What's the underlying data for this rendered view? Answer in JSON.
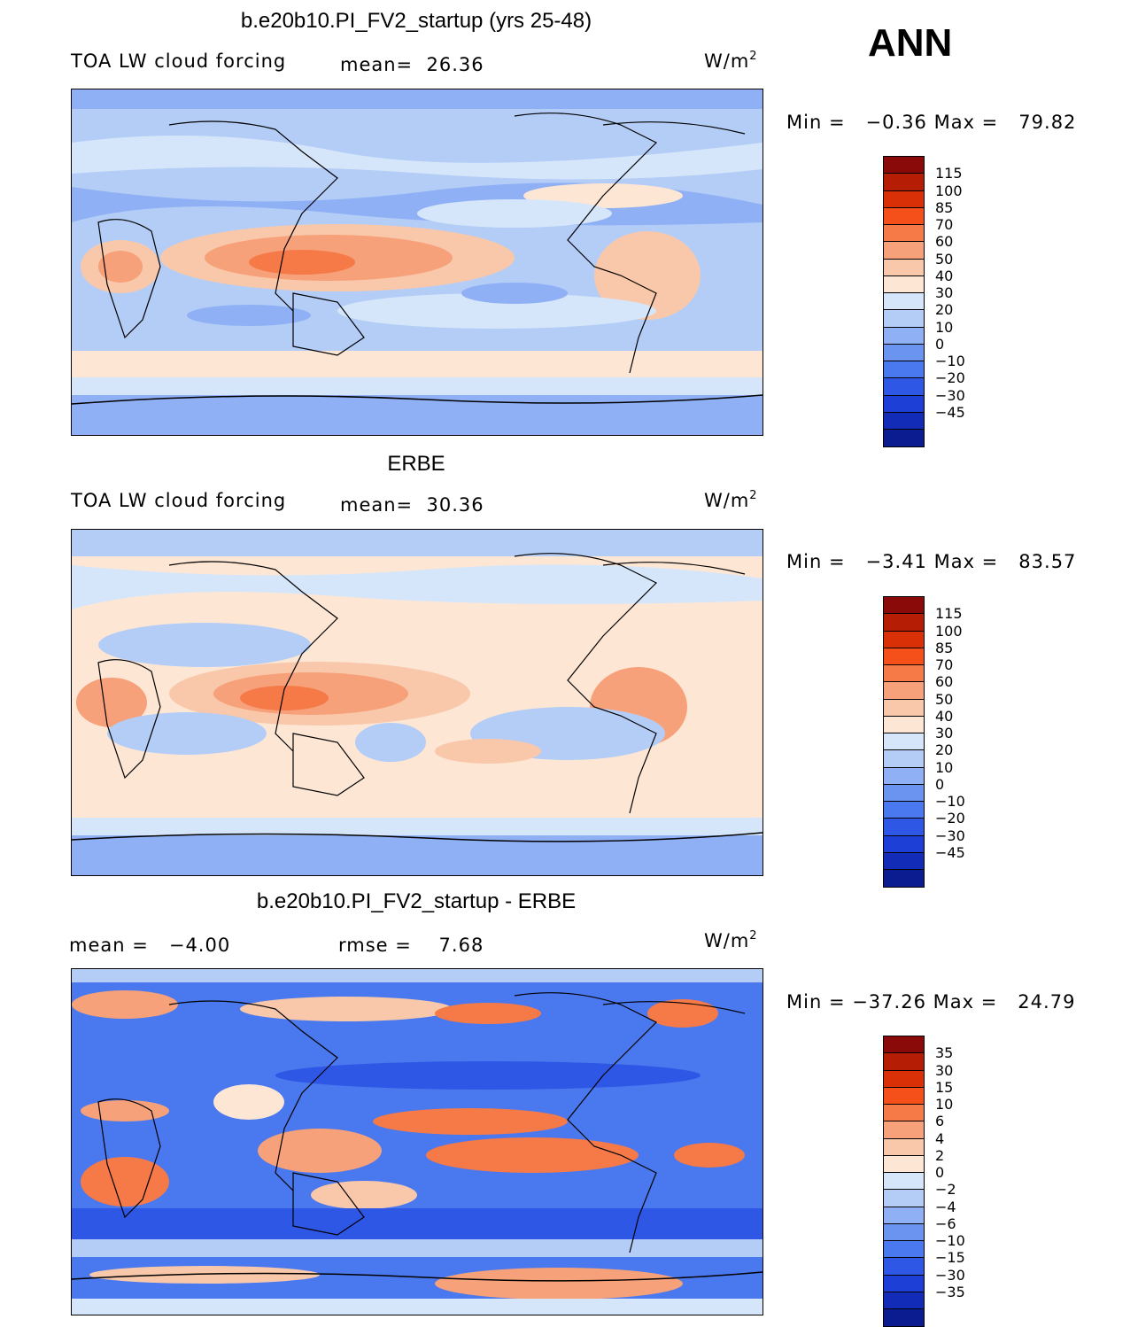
{
  "season_label": "ANN",
  "panels": [
    {
      "title": "b.e20b10.PI_FV2_startup (yrs 25-48)",
      "variable": "TOA LW cloud forcing",
      "stat_text": "mean=  26.36",
      "units_base": "W/m",
      "units_exp": "2",
      "minmax": "Min =   −0.36 Max =   79.82"
    },
    {
      "title": "ERBE",
      "variable": "TOA LW cloud forcing",
      "stat_text": "mean=  30.36",
      "units_base": "W/m",
      "units_exp": "2",
      "minmax": "Min =   −3.41 Max =   83.57"
    },
    {
      "title": "b.e20b10.PI_FV2_startup - ERBE",
      "mean_text": "mean =   −4.00",
      "rmse_text": "rmse =    7.68",
      "units_base": "W/m",
      "units_exp": "2",
      "minmax": "Min = −37.26 Max =   24.79"
    }
  ],
  "chart_data": [
    {
      "type": "heatmap",
      "title": "b.e20b10.PI_FV2_startup (yrs 25-48)",
      "variable": "TOA LW cloud forcing",
      "units": "W/m2",
      "mean": 26.36,
      "min": -0.36,
      "max": 79.82,
      "colorbar_levels": [
        "115",
        "100",
        "85",
        "70",
        "60",
        "50",
        "40",
        "30",
        "20",
        "10",
        "0",
        "−10",
        "−20",
        "−30",
        "−45"
      ],
      "colorbar_colors": [
        "#8a0a0a",
        "#b51e05",
        "#d93008",
        "#f5501a",
        "#f57a48",
        "#f7a17a",
        "#f9c8aa",
        "#fde6d4",
        "#d6e6fa",
        "#b4cdf7",
        "#8fb0f4",
        "#6a94f0",
        "#4a78ee",
        "#2f57e6",
        "#1d3fd6",
        "#122cb8",
        "#0a1c90"
      ]
    },
    {
      "type": "heatmap",
      "title": "ERBE",
      "variable": "TOA LW cloud forcing",
      "units": "W/m2",
      "mean": 30.36,
      "min": -3.41,
      "max": 83.57,
      "colorbar_levels": [
        "115",
        "100",
        "85",
        "70",
        "60",
        "50",
        "40",
        "30",
        "20",
        "10",
        "0",
        "−10",
        "−20",
        "−30",
        "−45"
      ],
      "colorbar_colors": [
        "#8a0a0a",
        "#b51e05",
        "#d93008",
        "#f5501a",
        "#f57a48",
        "#f7a17a",
        "#f9c8aa",
        "#fde6d4",
        "#d6e6fa",
        "#b4cdf7",
        "#8fb0f4",
        "#6a94f0",
        "#4a78ee",
        "#2f57e6",
        "#1d3fd6",
        "#122cb8",
        "#0a1c90"
      ]
    },
    {
      "type": "heatmap",
      "title": "b.e20b10.PI_FV2_startup - ERBE",
      "units": "W/m2",
      "mean": -4.0,
      "rmse": 7.68,
      "min": -37.26,
      "max": 24.79,
      "colorbar_levels": [
        "35",
        "30",
        "15",
        "10",
        "6",
        "4",
        "2",
        "0",
        "−2",
        "−4",
        "−6",
        "−10",
        "−15",
        "−30",
        "−35"
      ],
      "colorbar_colors": [
        "#8a0a0a",
        "#b51e05",
        "#d93008",
        "#f5501a",
        "#f57a48",
        "#f7a17a",
        "#f9c8aa",
        "#fde6d4",
        "#d6e6fa",
        "#b4cdf7",
        "#8fb0f4",
        "#6a94f0",
        "#4a78ee",
        "#2f57e6",
        "#1d3fd6",
        "#122cb8",
        "#0a1c90"
      ]
    }
  ]
}
